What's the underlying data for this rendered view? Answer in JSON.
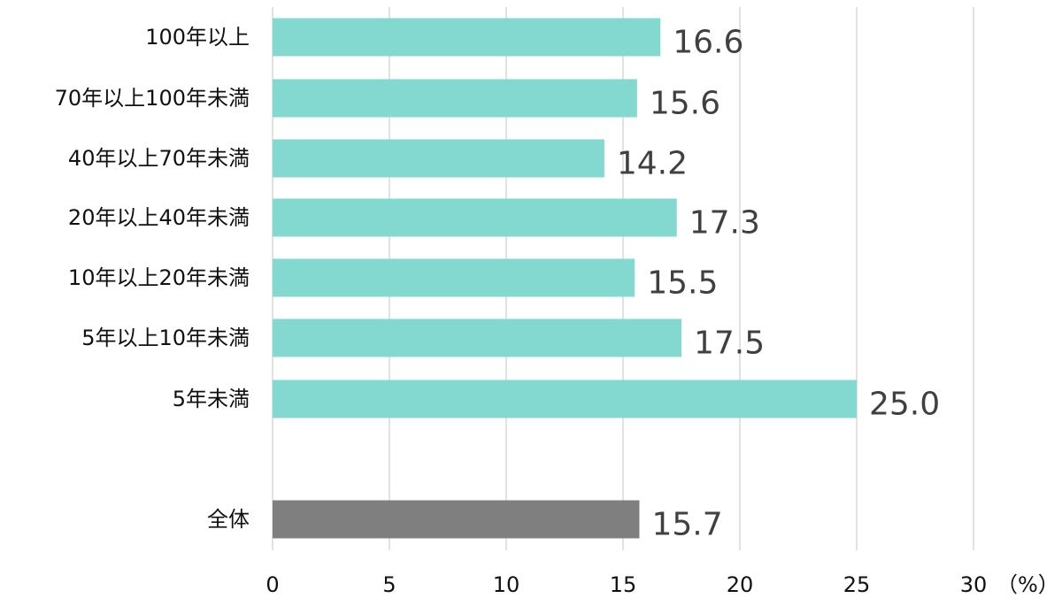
{
  "chart_data": {
    "type": "bar",
    "orientation": "horizontal",
    "categories": [
      "100年以上",
      "70年以上100年未満",
      "40年以上70年未満",
      "20年以上40年未満",
      "10年以上20年未満",
      "5年以上10年未満",
      "5年未満",
      "全体"
    ],
    "values": [
      16.6,
      15.6,
      14.2,
      17.3,
      15.5,
      17.5,
      25.0,
      15.7
    ],
    "value_labels": [
      "16.6",
      "15.6",
      "14.2",
      "17.3",
      "15.5",
      "17.5",
      "25.0",
      "15.7"
    ],
    "bar_colors": [
      "#83d8d0",
      "#83d8d0",
      "#83d8d0",
      "#83d8d0",
      "#83d8d0",
      "#83d8d0",
      "#83d8d0",
      "#7f7f7f"
    ],
    "xlim": [
      0,
      30
    ],
    "xticks": [
      0,
      5,
      10,
      15,
      20,
      25,
      30
    ],
    "tick_labels": [
      "0",
      "5",
      "10",
      "15",
      "20",
      "25",
      "30"
    ],
    "unit_label": "（%）",
    "grid": true,
    "title": "",
    "xlabel": "",
    "ylabel": ""
  }
}
